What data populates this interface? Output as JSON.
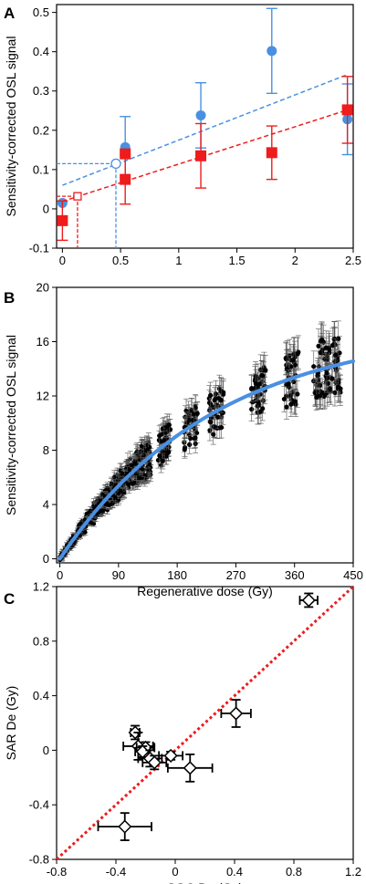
{
  "chart_data": [
    {
      "panel": "A",
      "type": "scatter",
      "title": "",
      "xlabel": "",
      "ylabel": "Sensitivity-corrected OSL signal",
      "xlim": [
        -0.05,
        2.5
      ],
      "ylim": [
        -0.1,
        0.52
      ],
      "xticks": [
        0,
        0.5,
        1,
        1.5,
        2,
        2.5
      ],
      "xtick_labels": [
        "0",
        "0.5",
        "1",
        "1.5",
        "2",
        "2.5"
      ],
      "yticks": [
        -0.1,
        0,
        0.1,
        0.2,
        0.3,
        0.4,
        0.5
      ],
      "ytick_labels": [
        "-0.1",
        "0",
        "0.1",
        "0.2",
        "0.3",
        "0.4",
        "0.5"
      ],
      "grid": false,
      "series": [
        {
          "marker": "circle",
          "color": "#4a90e2",
          "points": [
            {
              "x": 0,
              "y": 0.015,
              "err": 0
            },
            {
              "x": 0.54,
              "y": 0.157,
              "err": 0.078
            },
            {
              "x": 1.19,
              "y": 0.238,
              "err": 0.083
            },
            {
              "x": 1.8,
              "y": 0.402,
              "err": 0.108
            },
            {
              "x": 2.45,
              "y": 0.228,
              "err": 0.09
            }
          ],
          "fit": {
            "intercept": 0.06,
            "slope": 0.115,
            "x_range": [
              0,
              2.45
            ]
          },
          "interpolated": {
            "x": 0.46,
            "y": 0.115
          }
        },
        {
          "marker": "square",
          "color": "#ee1c1c",
          "points": [
            {
              "x": 0,
              "y": -0.03,
              "err": 0.05
            },
            {
              "x": 0.54,
              "y": 0.14,
              "err": 0
            },
            {
              "x": 0.54,
              "y": 0.075,
              "err": 0.063
            },
            {
              "x": 1.19,
              "y": 0.135,
              "err": 0.082
            },
            {
              "x": 1.8,
              "y": 0.143,
              "err": 0.068
            },
            {
              "x": 2.45,
              "y": 0.252,
              "err": 0.085
            }
          ],
          "fit": {
            "intercept": 0.019,
            "slope": 0.095,
            "x_range": [
              0,
              2.45
            ]
          },
          "interpolated": {
            "x": 0.13,
            "y": 0.032
          }
        }
      ]
    },
    {
      "panel": "B",
      "type": "scatter",
      "title": "",
      "xlabel": "Regenerative dose (Gy)",
      "ylabel": "Sensitivity-corrected OSL signal",
      "xlim": [
        -5,
        450
      ],
      "ylim": [
        -0.3,
        20
      ],
      "xticks": [
        0,
        90,
        180,
        270,
        360,
        450
      ],
      "xtick_labels": [
        "0",
        "90",
        "180",
        "270",
        "360",
        "450"
      ],
      "yticks": [
        0,
        4,
        8,
        12,
        16,
        20
      ],
      "ytick_labels": [
        "0",
        "4",
        "8",
        "12",
        "16",
        "20"
      ],
      "grid": false,
      "curve": {
        "model": "saturating exponential",
        "color": "#4a90e2",
        "amplitude": 17.2,
        "d0": 240
      },
      "dose_groups": [
        {
          "dose": 160,
          "spread": 1.4
        },
        {
          "dose": 200,
          "spread": 1.5
        },
        {
          "dose": 240,
          "spread": 1.6
        },
        {
          "dose": 305,
          "spread": 1.7
        },
        {
          "dose": 355,
          "spread": 2.1
        },
        {
          "dose": 400,
          "spread": 2.3
        },
        {
          "dose": 420,
          "spread": 2.2
        }
      ],
      "dense_region_max_dose": 140,
      "points_per_group": 38,
      "error_fraction": 0.08,
      "marker_color": "#000000"
    },
    {
      "panel": "C",
      "type": "scatter",
      "title": "",
      "xlabel": "SGC De (Gy)",
      "ylabel": "SAR De (Gy)",
      "xlim": [
        -0.8,
        1.2
      ],
      "ylim": [
        -0.8,
        1.2
      ],
      "xticks": [
        -0.8,
        -0.4,
        0,
        0.4,
        0.8,
        1.2
      ],
      "xtick_labels": [
        "-0.8",
        "-0.4",
        "0",
        "0.4",
        "0.8",
        "1.2"
      ],
      "yticks": [
        -0.8,
        -0.4,
        0,
        0.4,
        0.8,
        1.2
      ],
      "ytick_labels": [
        "-0.8",
        "-0.4",
        "0",
        "0.4",
        "0.8",
        "1.2"
      ],
      "grid": false,
      "reference_line": {
        "from": [
          -0.8,
          -0.8
        ],
        "to": [
          1.2,
          1.2
        ],
        "color": "#ee1c1c",
        "style": "dotted"
      },
      "points": [
        {
          "x": 0.9,
          "y": 1.1,
          "xerr": 0.06,
          "yerr": 0.05
        },
        {
          "x": 0.41,
          "y": 0.27,
          "xerr": 0.1,
          "yerr": 0.1
        },
        {
          "x": -0.27,
          "y": 0.13,
          "xerr": 0.03,
          "yerr": 0.05
        },
        {
          "x": -0.25,
          "y": 0.03,
          "xerr": 0.1,
          "yerr": 0.1
        },
        {
          "x": -0.2,
          "y": 0.02,
          "xerr": 0.06,
          "yerr": 0.04
        },
        {
          "x": -0.22,
          "y": -0.01,
          "xerr": 0.05,
          "yerr": 0.04
        },
        {
          "x": -0.17,
          "y": -0.06,
          "xerr": 0.08,
          "yerr": 0.06
        },
        {
          "x": -0.14,
          "y": -0.09,
          "xerr": 0.08,
          "yerr": 0.05
        },
        {
          "x": -0.03,
          "y": -0.04,
          "xerr": 0.08,
          "yerr": 0.03
        },
        {
          "x": 0.1,
          "y": -0.13,
          "xerr": 0.15,
          "yerr": 0.1
        },
        {
          "x": -0.34,
          "y": -0.56,
          "xerr": 0.18,
          "yerr": 0.1
        }
      ]
    }
  ]
}
